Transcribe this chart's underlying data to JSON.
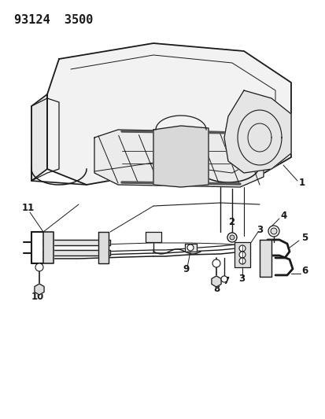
{
  "title": "93124  3500",
  "bg_color": "#ffffff",
  "line_color": "#1a1a1a",
  "title_fontsize": 11,
  "label_fontsize": 8.5,
  "figsize": [
    4.14,
    5.33
  ],
  "dpi": 100
}
